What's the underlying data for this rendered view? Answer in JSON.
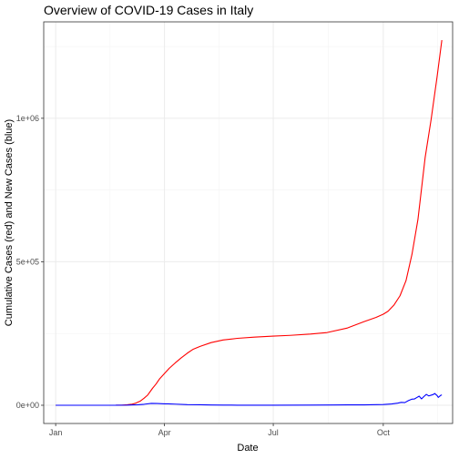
{
  "chart_data": {
    "type": "line",
    "title": "Overview of COVID-19 Cases in Italy",
    "xlabel": "Date",
    "ylabel": "Cumulative Cases (red) and New Cases (blue)",
    "x_ticks": [
      {
        "label": "Jan",
        "value": "2020-01-01"
      },
      {
        "label": "Apr",
        "value": "2020-04-01"
      },
      {
        "label": "Jul",
        "value": "2020-07-01"
      },
      {
        "label": "Oct",
        "value": "2020-10-01"
      }
    ],
    "y_ticks": [
      {
        "label": "0e+00",
        "value": 0
      },
      {
        "label": "5e+05",
        "value": 500000
      },
      {
        "label": "1e+06",
        "value": 1000000
      }
    ],
    "xlim": [
      "2019-12-22",
      "2020-11-28"
    ],
    "ylim": [
      -63500,
      1336000
    ],
    "grid": true,
    "series": [
      {
        "color": "#ff0000",
        "points": [
          [
            "2020-01-01",
            0
          ],
          [
            "2020-02-20",
            0
          ],
          [
            "2020-02-25",
            300
          ],
          [
            "2020-03-01",
            1700
          ],
          [
            "2020-03-05",
            3900
          ],
          [
            "2020-03-08",
            7400
          ],
          [
            "2020-03-12",
            15100
          ],
          [
            "2020-03-15",
            24700
          ],
          [
            "2020-03-18",
            35700
          ],
          [
            "2020-03-22",
            59100
          ],
          [
            "2020-03-25",
            74400
          ],
          [
            "2020-03-28",
            92500
          ],
          [
            "2020-04-01",
            110600
          ],
          [
            "2020-04-05",
            128900
          ],
          [
            "2020-04-10",
            147600
          ],
          [
            "2020-04-15",
            165200
          ],
          [
            "2020-04-20",
            181200
          ],
          [
            "2020-04-25",
            195300
          ],
          [
            "2020-05-01",
            205500
          ],
          [
            "2020-05-10",
            218300
          ],
          [
            "2020-05-20",
            227400
          ],
          [
            "2020-06-01",
            233200
          ],
          [
            "2020-06-15",
            237300
          ],
          [
            "2020-07-01",
            240800
          ],
          [
            "2020-07-15",
            243500
          ],
          [
            "2020-08-01",
            248000
          ],
          [
            "2020-08-15",
            253400
          ],
          [
            "2020-09-01",
            269200
          ],
          [
            "2020-09-15",
            291400
          ],
          [
            "2020-09-25",
            306200
          ],
          [
            "2020-10-01",
            317400
          ],
          [
            "2020-10-05",
            327600
          ],
          [
            "2020-10-10",
            349500
          ],
          [
            "2020-10-15",
            381600
          ],
          [
            "2020-10-20",
            434000
          ],
          [
            "2020-10-25",
            525800
          ],
          [
            "2020-10-30",
            647700
          ],
          [
            "2020-11-05",
            862700
          ],
          [
            "2020-11-10",
            995500
          ],
          [
            "2020-11-15",
            1144600
          ],
          [
            "2020-11-19",
            1272300
          ]
        ]
      },
      {
        "color": "#0000ff",
        "points": [
          [
            "2020-01-01",
            0
          ],
          [
            "2020-02-20",
            0
          ],
          [
            "2020-03-01",
            500
          ],
          [
            "2020-03-10",
            1800
          ],
          [
            "2020-03-15",
            3500
          ],
          [
            "2020-03-21",
            6500
          ],
          [
            "2020-03-26",
            6200
          ],
          [
            "2020-04-01",
            4800
          ],
          [
            "2020-04-04",
            4800
          ],
          [
            "2020-04-10",
            3900
          ],
          [
            "2020-04-20",
            2300
          ],
          [
            "2020-05-01",
            1900
          ],
          [
            "2020-05-10",
            1000
          ],
          [
            "2020-05-20",
            700
          ],
          [
            "2020-06-01",
            300
          ],
          [
            "2020-07-01",
            200
          ],
          [
            "2020-08-01",
            400
          ],
          [
            "2020-08-20",
            900
          ],
          [
            "2020-09-01",
            1400
          ],
          [
            "2020-09-15",
            1400
          ],
          [
            "2020-10-01",
            2500
          ],
          [
            "2020-10-08",
            4500
          ],
          [
            "2020-10-13",
            7300
          ],
          [
            "2020-10-16",
            10000
          ],
          [
            "2020-10-19",
            9300
          ],
          [
            "2020-10-22",
            16100
          ],
          [
            "2020-10-25",
            21300
          ],
          [
            "2020-10-27",
            21900
          ],
          [
            "2020-10-29",
            26800
          ],
          [
            "2020-10-31",
            31800
          ],
          [
            "2020-11-02",
            22300
          ],
          [
            "2020-11-04",
            30500
          ],
          [
            "2020-11-06",
            37800
          ],
          [
            "2020-11-08",
            32600
          ],
          [
            "2020-11-10",
            35100
          ],
          [
            "2020-11-12",
            37900
          ],
          [
            "2020-11-13",
            40900
          ],
          [
            "2020-11-15",
            33900
          ],
          [
            "2020-11-16",
            27300
          ],
          [
            "2020-11-18",
            34300
          ],
          [
            "2020-11-19",
            36100
          ]
        ]
      }
    ]
  }
}
